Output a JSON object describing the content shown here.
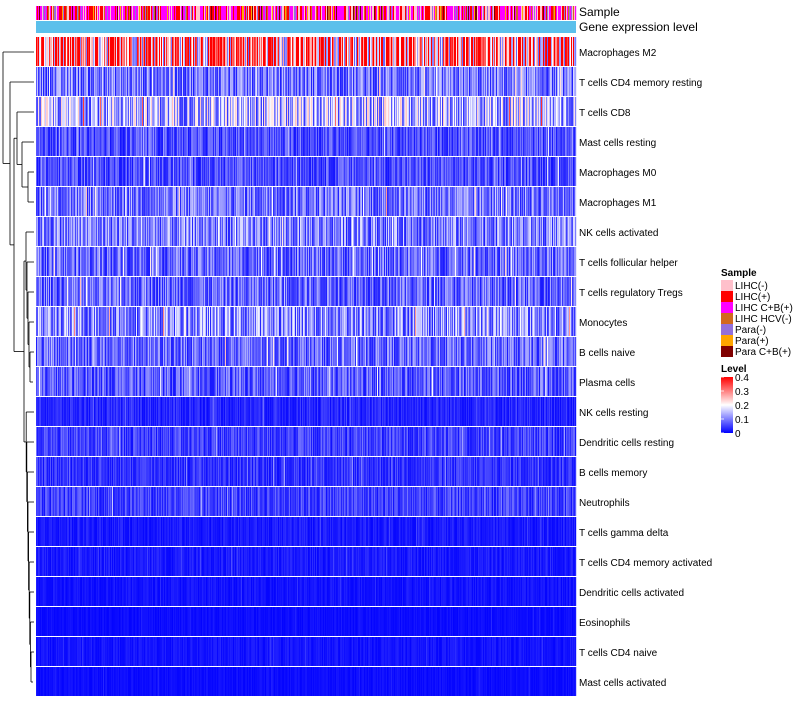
{
  "chart_data": {
    "type": "heatmap",
    "title": "",
    "annotation_tracks": [
      {
        "label": "Sample",
        "key": "sample"
      },
      {
        "label": "Gene expression level",
        "key": "level"
      }
    ],
    "rows": [
      "Macrophages M2",
      "T cells CD4 memory resting",
      "T cells CD8",
      "Mast cells resting",
      "Macrophages M0",
      "Macrophages M1",
      "NK cells activated",
      "T cells follicular helper",
      "T cells regulatory  Tregs",
      "Monocytes",
      "B cells naive",
      "Plasma cells",
      "NK cells resting",
      "Dendritic cells resting",
      "B cells memory",
      "Neutrophils",
      "T cells gamma delta",
      "T cells CD4 memory activated",
      "Dendritic cells activated",
      "Eosinophils",
      "T cells CD4 naive",
      "Mast cells activated"
    ],
    "row_mean_levels": [
      0.3,
      0.09,
      0.14,
      0.06,
      0.06,
      0.09,
      0.1,
      0.08,
      0.08,
      0.11,
      0.08,
      0.07,
      0.03,
      0.05,
      0.04,
      0.05,
      0.02,
      0.02,
      0.015,
      0.01,
      0.015,
      0.01
    ],
    "n_columns": 540,
    "legend_sample": {
      "title": "Sample",
      "entries": [
        {
          "label": "LIHC(-)",
          "color": "#ffc0cb"
        },
        {
          "label": "LIHC(+)",
          "color": "#ff0000"
        },
        {
          "label": "LIHC C+B(+)",
          "color": "#ff00ff"
        },
        {
          "label": "LIHC HCV(-)",
          "color": "#d2691e"
        },
        {
          "label": "Para(-)",
          "color": "#9370db"
        },
        {
          "label": "Para(+)",
          "color": "#ffa500"
        },
        {
          "label": "Para C+B(+)",
          "color": "#800000"
        }
      ]
    },
    "legend_level": {
      "title": "Level",
      "ticks": [
        "0.4",
        "0.3",
        "0.2",
        "0.1",
        "0"
      ],
      "tick_values": [
        0.4,
        0.3,
        0.2,
        0.1,
        0
      ],
      "range": [
        0,
        0.4
      ],
      "colors": [
        "#0000ff",
        "#ffffff",
        "#ff0000"
      ]
    },
    "level_track_color": "#5bc0eb"
  }
}
